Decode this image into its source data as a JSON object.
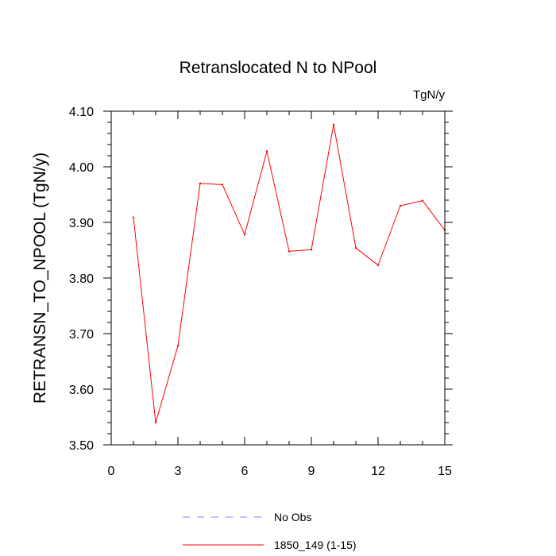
{
  "chart_data": {
    "type": "line",
    "title": "Retranslocated N to NPool",
    "units_label": "TgN/y",
    "ylabel": "RETRANSN_TO_NPOOL  (TgN/y)",
    "xlabel": "",
    "xlim": [
      0,
      15
    ],
    "ylim": [
      3.5,
      4.1
    ],
    "x_ticks": [
      0,
      3,
      6,
      9,
      12,
      15
    ],
    "x_tick_labels": [
      "0",
      "3",
      "6",
      "9",
      "12",
      "15"
    ],
    "y_ticks": [
      3.5,
      3.6,
      3.7,
      3.8,
      3.9,
      4.0,
      4.1
    ],
    "y_tick_labels": [
      "3.50",
      "3.60",
      "3.70",
      "3.80",
      "3.90",
      "4.00",
      "4.10"
    ],
    "grid": false,
    "legend_position": "bottom",
    "series": [
      {
        "name": "1850_149 (1-15)",
        "color": "#ff0000",
        "dash": "solid",
        "x": [
          1,
          2,
          3,
          4,
          5,
          6,
          7,
          8,
          9,
          10,
          11,
          12,
          13,
          14,
          15
        ],
        "values": [
          3.909,
          3.54,
          3.678,
          3.97,
          3.968,
          3.878,
          4.028,
          3.848,
          3.851,
          4.076,
          3.854,
          3.823,
          3.93,
          3.939,
          3.886
        ]
      }
    ],
    "legend": [
      {
        "label": "No Obs",
        "color": "#8080ff",
        "dash": "dashed"
      },
      {
        "label": "1850_149 (1-15)",
        "color": "#ff0000",
        "dash": "solid"
      }
    ]
  }
}
